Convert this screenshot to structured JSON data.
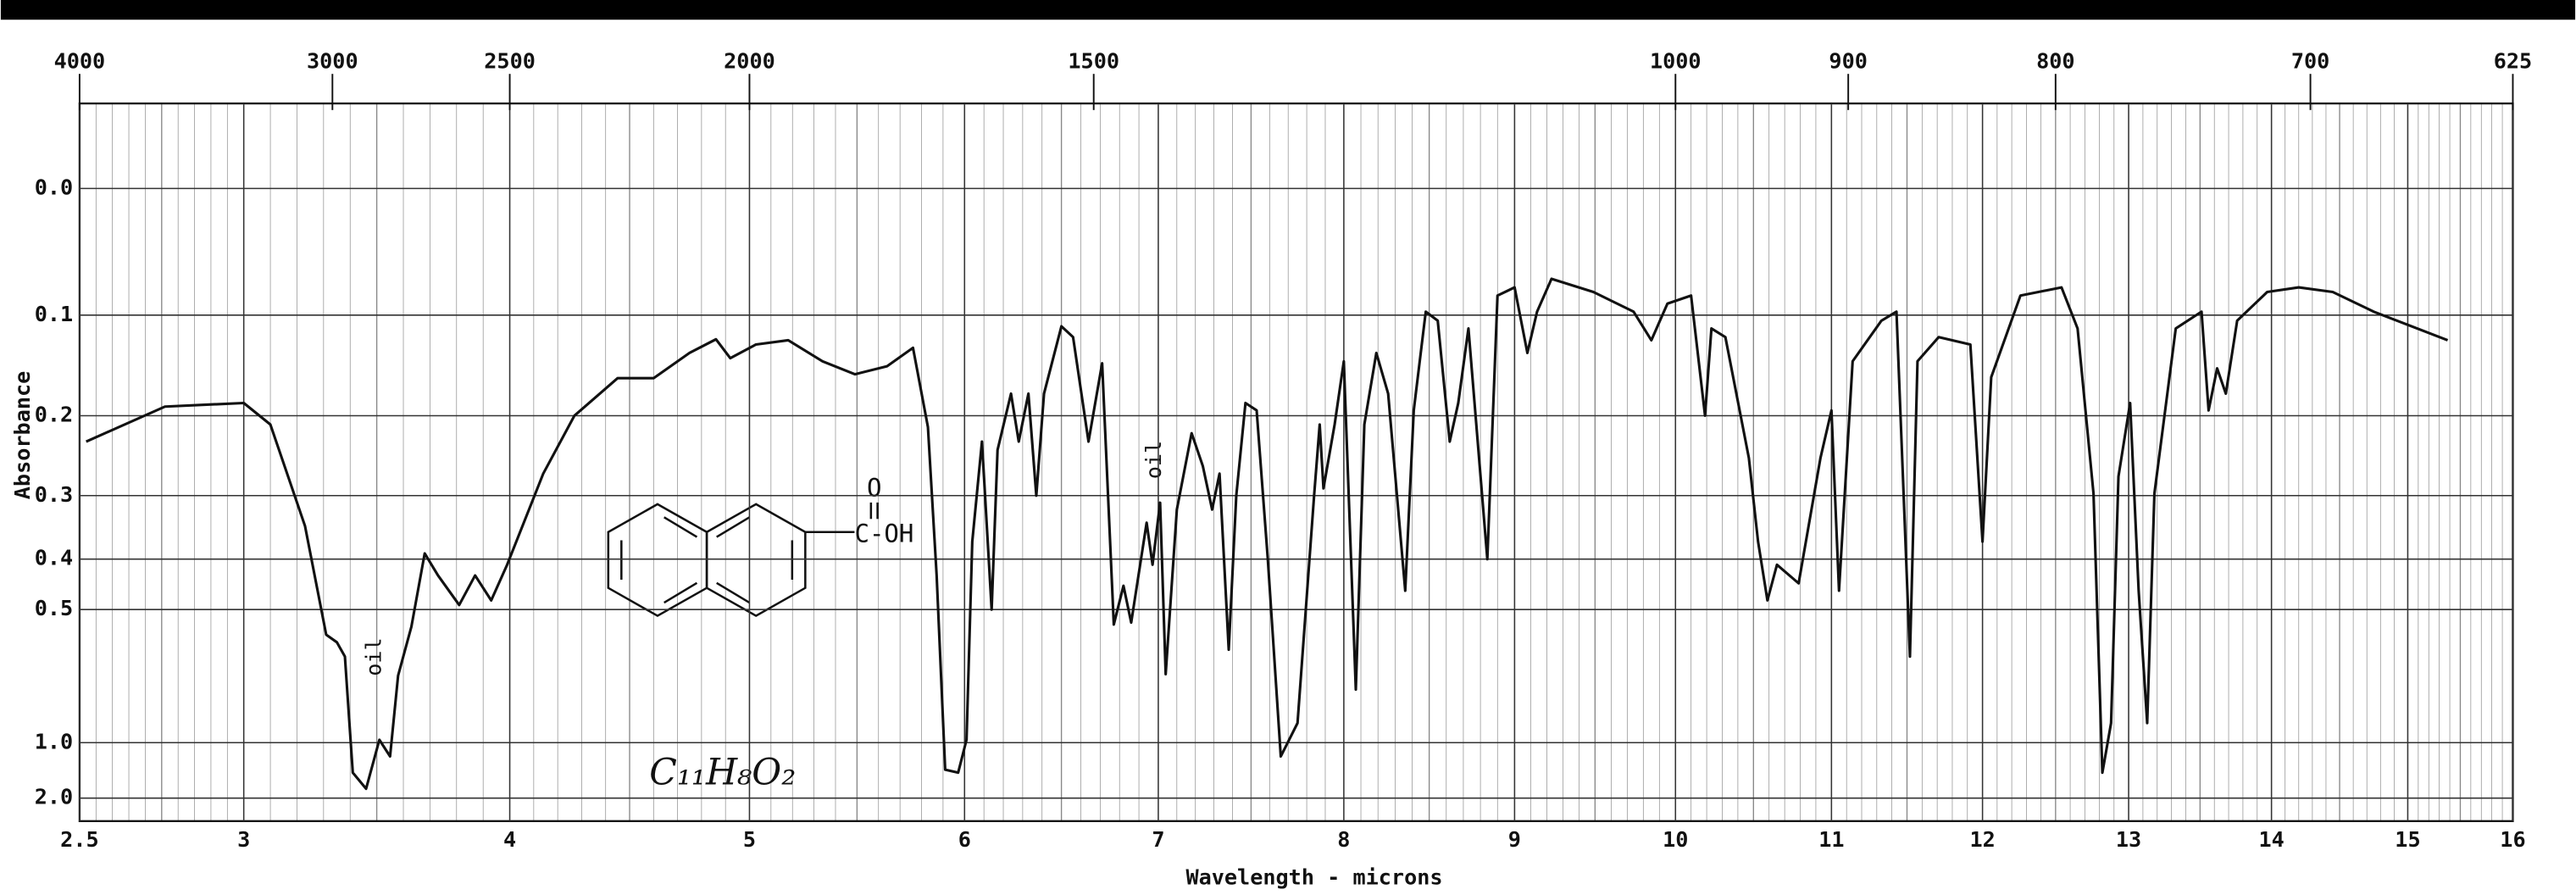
{
  "chart_data": {
    "type": "line",
    "title_top_axis": null,
    "xlabel": "Wavelength - microns",
    "ylabel": "Absorbance",
    "yscale": "absorbance",
    "grid": true,
    "color": "#111111",
    "xlim": [
      2.5,
      16
    ],
    "xticks": [
      2.5,
      3,
      4,
      5,
      6,
      7,
      8,
      9,
      10,
      11,
      12,
      13,
      14,
      15,
      16
    ],
    "x2ticks": [
      4000,
      3000,
      2500,
      2000,
      1500,
      1000,
      900,
      800,
      700,
      625
    ],
    "ylim": [
      -0.05,
      2.0
    ],
    "yticks": [
      {
        "value": 0,
        "label": "0.0"
      },
      0.1,
      0.2,
      0.3,
      0.4,
      0.5,
      {
        "value": 1,
        "label": "1.0"
      },
      {
        "value": 2,
        "label": "2.0"
      }
    ],
    "annotations": [
      "oil",
      "oil",
      "C₁₁H₈O₂",
      "O",
      "C-OH"
    ],
    "x": [
      2.52,
      2.76,
      3.0,
      3.1,
      3.23,
      3.31,
      3.35,
      3.38,
      3.41,
      3.46,
      3.51,
      3.55,
      3.58,
      3.63,
      3.68,
      3.73,
      3.81,
      3.87,
      3.93,
      3.99,
      4.14,
      4.27,
      4.45,
      4.6,
      4.75,
      4.86,
      4.92,
      5.03,
      5.18,
      5.34,
      5.49,
      5.64,
      5.76,
      5.83,
      5.87,
      5.91,
      5.97,
      6.01,
      6.04,
      6.09,
      6.14,
      6.17,
      6.24,
      6.28,
      6.33,
      6.37,
      6.41,
      6.5,
      6.56,
      6.64,
      6.71,
      6.77,
      6.82,
      6.86,
      6.94,
      6.97,
      7.01,
      7.04,
      7.1,
      7.18,
      7.24,
      7.29,
      7.33,
      7.38,
      7.42,
      7.47,
      7.53,
      7.59,
      7.66,
      7.75,
      7.84,
      7.87,
      7.89,
      7.95,
      8.0,
      8.07,
      8.12,
      8.19,
      8.26,
      8.36,
      8.41,
      8.48,
      8.55,
      8.62,
      8.67,
      8.73,
      8.84,
      8.9,
      9.0,
      9.08,
      9.14,
      9.23,
      9.49,
      9.74,
      9.85,
      9.95,
      10.1,
      10.19,
      10.23,
      10.32,
      10.47,
      10.53,
      10.59,
      10.65,
      10.79,
      10.93,
      11.0,
      11.05,
      11.14,
      11.33,
      11.43,
      11.52,
      11.57,
      11.71,
      11.92,
      12.0,
      12.06,
      12.26,
      12.54,
      12.65,
      12.76,
      12.82,
      12.88,
      12.93,
      13.01,
      13.07,
      13.13,
      13.18,
      13.33,
      13.51,
      13.56,
      13.62,
      13.68,
      13.76,
      13.97,
      14.2,
      14.45,
      14.75,
      15.38
    ],
    "values": [
      0.23,
      0.19,
      0.186,
      0.21,
      0.345,
      0.56,
      0.58,
      0.62,
      1.29,
      1.6,
      0.98,
      1.11,
      0.68,
      0.54,
      0.39,
      0.43,
      0.49,
      0.43,
      0.48,
      0.41,
      0.27,
      0.2,
      0.16,
      0.16,
      0.135,
      0.122,
      0.14,
      0.127,
      0.123,
      0.143,
      0.156,
      0.148,
      0.13,
      0.213,
      0.43,
      1.25,
      1.29,
      0.98,
      0.37,
      0.23,
      0.5,
      0.24,
      0.176,
      0.23,
      0.176,
      0.3,
      0.176,
      0.11,
      0.12,
      0.23,
      0.145,
      0.535,
      0.45,
      0.53,
      0.34,
      0.41,
      0.31,
      0.675,
      0.32,
      0.22,
      0.26,
      0.32,
      0.27,
      0.6,
      0.3,
      0.186,
      0.194,
      0.4,
      1.11,
      0.88,
      0.3,
      0.21,
      0.29,
      0.21,
      0.143,
      0.73,
      0.21,
      0.135,
      0.176,
      0.46,
      0.194,
      0.097,
      0.105,
      0.23,
      0.186,
      0.112,
      0.4,
      0.083,
      0.076,
      0.135,
      0.097,
      0.069,
      0.08,
      0.097,
      0.123,
      0.09,
      0.083,
      0.2,
      0.112,
      0.12,
      0.25,
      0.37,
      0.48,
      0.41,
      0.445,
      0.25,
      0.194,
      0.46,
      0.143,
      0.105,
      0.097,
      0.62,
      0.143,
      0.12,
      0.127,
      0.37,
      0.159,
      0.083,
      0.076,
      0.112,
      0.297,
      1.29,
      0.88,
      0.274,
      0.186,
      0.46,
      0.88,
      0.297,
      0.112,
      0.097,
      0.194,
      0.15,
      0.176,
      0.105,
      0.08,
      0.076,
      0.08,
      0.097,
      0.123
    ]
  }
}
